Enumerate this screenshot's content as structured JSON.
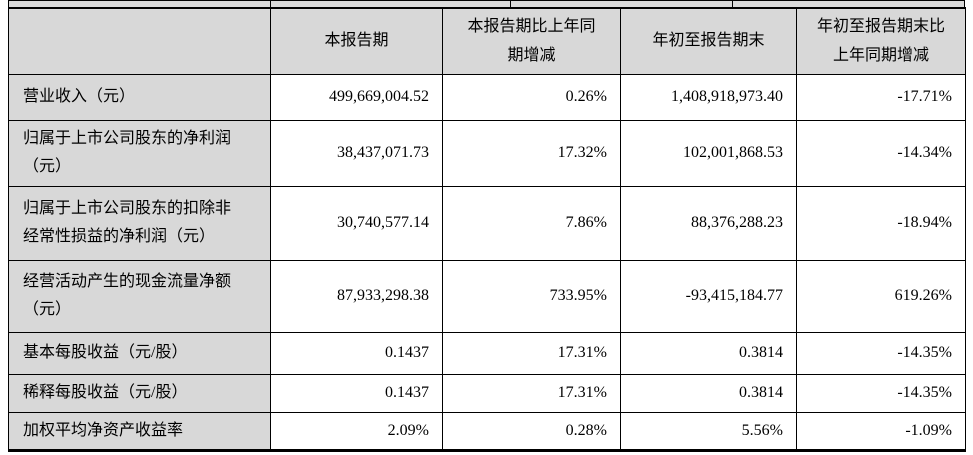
{
  "colors": {
    "header_bg": "#d8d8d8",
    "border": "#000000",
    "text": "#000000",
    "page_bg": "#ffffff"
  },
  "table": {
    "columns": [
      "",
      "本报告期",
      "本报告期比上年同\n期增减",
      "年初至报告期末",
      "年初至报告期末比\n上年同期增减"
    ],
    "rows": [
      {
        "label": "营业收入（元）",
        "values": [
          "499,669,004.52",
          "0.26%",
          "1,408,918,973.40",
          "-17.71%"
        ]
      },
      {
        "label": "归属于上市公司股东的净利润\n（元）",
        "values": [
          "38,437,071.73",
          "17.32%",
          "102,001,868.53",
          "-14.34%"
        ]
      },
      {
        "label": "归属于上市公司股东的扣除非\n经常性损益的净利润（元）",
        "values": [
          "30,740,577.14",
          "7.86%",
          "88,376,288.23",
          "-18.94%"
        ]
      },
      {
        "label": "经营活动产生的现金流量净额\n（元）",
        "values": [
          "87,933,298.38",
          "733.95%",
          "-93,415,184.77",
          "619.26%"
        ]
      },
      {
        "label": "基本每股收益（元/股）",
        "values": [
          "0.1437",
          "17.31%",
          "0.3814",
          "-14.35%"
        ]
      },
      {
        "label": "稀释每股收益（元/股）",
        "values": [
          "0.1437",
          "17.31%",
          "0.3814",
          "-14.35%"
        ]
      },
      {
        "label": "加权平均净资产收益率",
        "values": [
          "2.09%",
          "0.28%",
          "5.56%",
          "-1.09%"
        ]
      }
    ]
  }
}
